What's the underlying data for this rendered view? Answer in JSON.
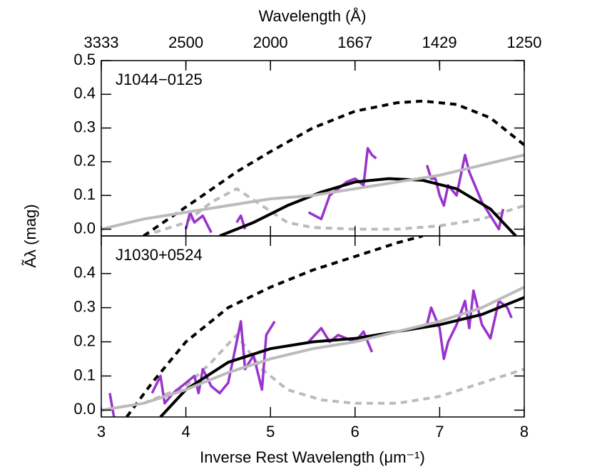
{
  "chart_data": [
    {
      "type": "line",
      "title": "J1044−0125",
      "x2label": "Wavelength (Å)",
      "ylabel": "Ãλ (mag)",
      "xlim": [
        3,
        8
      ],
      "ylim": [
        -0.02,
        0.5
      ],
      "x2_scale": "reciprocal",
      "x2ticks": [
        3333,
        2500,
        2000,
        1667,
        1429,
        1250
      ],
      "yticks": [
        {
          "value": 0,
          "label": "0.0"
        },
        {
          "value": 0.1,
          "label": "0.1"
        },
        {
          "value": 0.2,
          "label": "0.2"
        },
        {
          "value": 0.3,
          "label": "0.3"
        },
        {
          "value": 0.4,
          "label": "0.4"
        },
        {
          "value": 0.5,
          "label": "0.5"
        }
      ],
      "series": [
        {
          "color": "#bbbbbb",
          "dash": true,
          "x": [
            3.5,
            4.0,
            4.3,
            4.6,
            4.9,
            5.2,
            5.5,
            6.0,
            6.5,
            7.0,
            7.5,
            8.0
          ],
          "values": [
            -0.02,
            0.02,
            0.08,
            0.12,
            0.07,
            0.02,
            0.005,
            0.0,
            0.0,
            0.01,
            0.03,
            0.07
          ]
        },
        {
          "color": "#000000",
          "dash": true,
          "x": [
            3.5,
            3.85,
            4.2,
            4.6,
            5.0,
            5.5,
            6.0,
            6.5,
            6.8,
            7.2,
            7.6,
            8.0
          ],
          "values": [
            -0.02,
            0.04,
            0.1,
            0.17,
            0.23,
            0.3,
            0.35,
            0.375,
            0.38,
            0.37,
            0.33,
            0.25
          ]
        },
        {
          "color": "#9933cc",
          "dash": false,
          "x": [
            3.75,
            3.8,
            4.0,
            4.05,
            4.1,
            4.2,
            4.3,
            4.4,
            4.6,
            4.65,
            4.7,
            5.0,
            5.45,
            5.6,
            5.7,
            5.8,
            5.9,
            6.0,
            6.1,
            6.15,
            6.2,
            6.25,
            6.5,
            6.85,
            6.9,
            6.95,
            7.0,
            7.05,
            7.1,
            7.2,
            7.3,
            7.35,
            7.4,
            7.5,
            7.6,
            7.7,
            7.75
          ],
          "values": [
            0.005,
            null,
            0.0,
            0.05,
            0.02,
            0.04,
            -0.01,
            null,
            0.02,
            0.04,
            0.0,
            null,
            0.05,
            0.03,
            0.1,
            0.12,
            0.14,
            0.15,
            0.13,
            0.24,
            0.22,
            0.21,
            null,
            0.19,
            0.15,
            0.15,
            0.1,
            0.07,
            0.13,
            0.1,
            0.22,
            0.17,
            0.14,
            0.08,
            0.04,
            0.0,
            0.06
          ]
        },
        {
          "color": "#000000",
          "dash": false,
          "x": [
            4.4,
            4.8,
            5.2,
            5.6,
            6.0,
            6.4,
            6.8,
            7.2,
            7.6,
            7.9
          ],
          "values": [
            -0.02,
            0.02,
            0.07,
            0.11,
            0.14,
            0.15,
            0.145,
            0.12,
            0.06,
            -0.02
          ]
        },
        {
          "color": "#bbbbbb",
          "dash": false,
          "x": [
            3,
            3.5,
            4,
            4.5,
            5,
            5.5,
            6,
            6.5,
            7,
            7.5,
            8
          ],
          "values": [
            0.0,
            0.03,
            0.05,
            0.07,
            0.09,
            0.1,
            0.12,
            0.14,
            0.16,
            0.19,
            0.22
          ]
        }
      ]
    },
    {
      "type": "line",
      "title": "J1030+0524",
      "xlabel": "Inverse Rest Wavelength (μm⁻¹)",
      "xlim": [
        3,
        8
      ],
      "ylim": [
        -0.02,
        0.51
      ],
      "xticks": [
        3,
        4,
        5,
        6,
        7,
        8
      ],
      "yticks": [
        {
          "value": 0,
          "label": "0.0"
        },
        {
          "value": 0.1,
          "label": "0.1"
        },
        {
          "value": 0.2,
          "label": "0.2"
        },
        {
          "value": 0.3,
          "label": "0.3"
        },
        {
          "value": 0.4,
          "label": "0.4"
        }
      ],
      "series": [
        {
          "color": "#bbbbbb",
          "dash": true,
          "x": [
            3.5,
            4.0,
            4.3,
            4.6,
            4.9,
            5.2,
            5.6,
            6.0,
            6.5,
            7.0,
            7.5,
            8.0
          ],
          "values": [
            0.02,
            0.07,
            0.14,
            0.22,
            0.12,
            0.06,
            0.03,
            0.02,
            0.02,
            0.04,
            0.08,
            0.12
          ]
        },
        {
          "color": "#000000",
          "dash": true,
          "x": [
            3.3,
            3.6,
            4.0,
            4.5,
            5.0,
            5.5,
            6.0,
            6.5,
            6.8
          ],
          "values": [
            -0.02,
            0.08,
            0.2,
            0.3,
            0.36,
            0.41,
            0.45,
            0.49,
            0.51
          ]
        },
        {
          "color": "#9933cc",
          "dash": false,
          "x": [
            3.1,
            3.15,
            3.3,
            3.6,
            3.7,
            3.75,
            3.85,
            4.1,
            4.15,
            4.2,
            4.3,
            4.4,
            4.5,
            4.6,
            4.65,
            4.7,
            4.8,
            4.9,
            4.95,
            5.05,
            5.3,
            5.45,
            5.6,
            5.7,
            5.8,
            6.0,
            6.1,
            6.2,
            6.5,
            6.85,
            6.9,
            7.0,
            7.05,
            7.1,
            7.2,
            7.3,
            7.35,
            7.4,
            7.5,
            7.6,
            7.7,
            7.8,
            7.85
          ],
          "values": [
            0.05,
            -0.02,
            null,
            0.05,
            0.1,
            0.02,
            0.05,
            0.1,
            0.05,
            0.12,
            0.07,
            0.05,
            0.08,
            0.2,
            0.26,
            0.12,
            0.16,
            0.06,
            0.22,
            0.26,
            null,
            0.2,
            0.24,
            0.2,
            0.22,
            0.2,
            0.23,
            0.17,
            null,
            0.25,
            0.3,
            0.24,
            0.15,
            0.2,
            0.25,
            0.32,
            0.24,
            0.35,
            0.25,
            0.21,
            0.32,
            0.3,
            0.27
          ]
        },
        {
          "color": "#000000",
          "dash": false,
          "x": [
            3.7,
            4.0,
            4.5,
            5.0,
            5.5,
            6.0,
            6.5,
            7.0,
            7.5,
            8.0
          ],
          "values": [
            -0.02,
            0.06,
            0.14,
            0.18,
            0.2,
            0.21,
            0.23,
            0.25,
            0.28,
            0.33
          ]
        },
        {
          "color": "#bbbbbb",
          "dash": false,
          "x": [
            3,
            3.5,
            4,
            4.5,
            5,
            5.5,
            6,
            6.5,
            7,
            7.5,
            8
          ],
          "values": [
            0.0,
            0.02,
            0.06,
            0.11,
            0.15,
            0.18,
            0.2,
            0.23,
            0.26,
            0.3,
            0.36
          ]
        }
      ]
    }
  ]
}
